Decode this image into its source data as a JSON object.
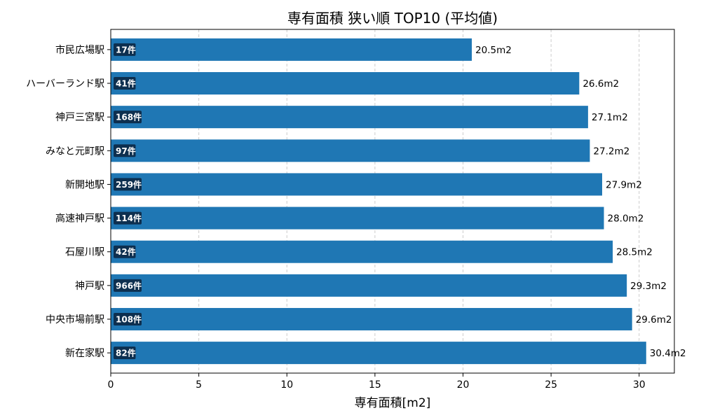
{
  "chart_data": {
    "type": "bar",
    "orientation": "horizontal",
    "title": "専有面積 狭い順 TOP10 (平均値)",
    "xlabel": "専有面積[m2]",
    "ylabel": "",
    "xlim": [
      0,
      32
    ],
    "xticks": [
      0,
      5,
      10,
      15,
      20,
      25,
      30
    ],
    "grid": "vertical dashed",
    "bar_color": "#1f77b4",
    "badge_color": "#0d2f4f",
    "categories": [
      "市民広場駅",
      "ハーバーランド駅",
      "神戸三宮駅",
      "みなと元町駅",
      "新開地駅",
      "高速神戸駅",
      "石屋川駅",
      "神戸駅",
      "中央市場前駅",
      "新在家駅"
    ],
    "values": [
      20.5,
      26.6,
      27.1,
      27.2,
      27.9,
      28.0,
      28.5,
      29.3,
      29.6,
      30.4
    ],
    "value_labels": [
      "20.5m2",
      "26.6m2",
      "27.1m2",
      "27.2m2",
      "27.9m2",
      "28.0m2",
      "28.5m2",
      "29.3m2",
      "29.6m2",
      "30.4m2"
    ],
    "count_labels": [
      "17件",
      "41件",
      "168件",
      "97件",
      "259件",
      "114件",
      "42件",
      "966件",
      "108件",
      "82件"
    ]
  }
}
